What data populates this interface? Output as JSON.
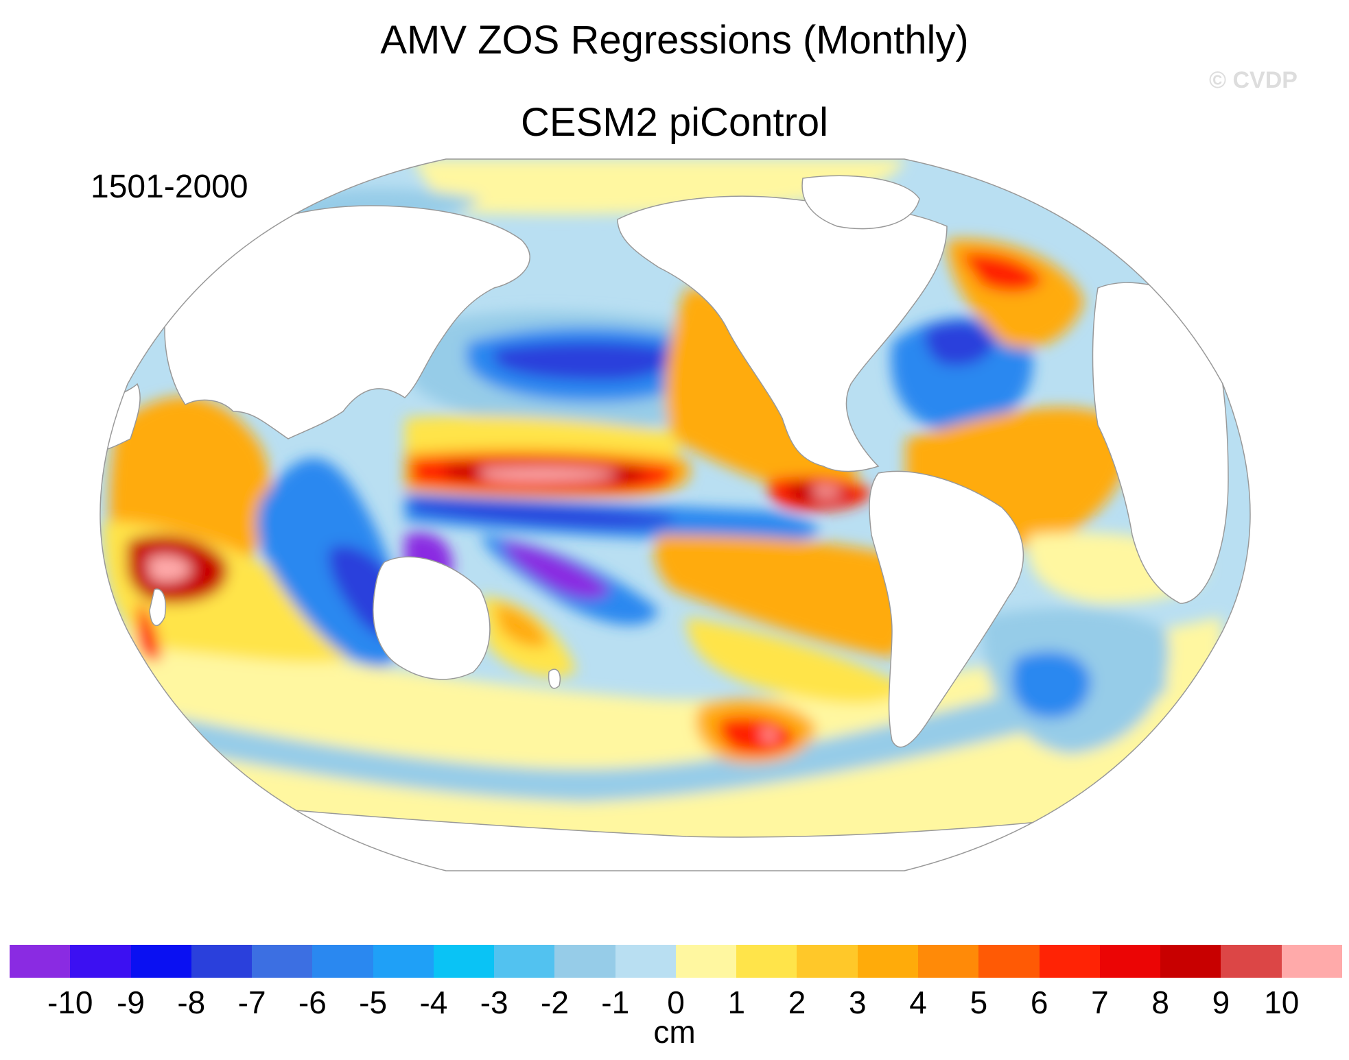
{
  "title": "AMV ZOS Regressions (Monthly)",
  "subtitle": "CESM2 piControl",
  "period": "1501-2000",
  "credit": "© CVDP",
  "units": "cm",
  "colorbar": {
    "colors": [
      "#8a2be2",
      "#3c10f2",
      "#0a10f2",
      "#2a40dc",
      "#3c6fe2",
      "#2a88f0",
      "#1fa0f7",
      "#0ac3f5",
      "#52c2f0",
      "#96cce8",
      "#b9dff2",
      "#fff7a0",
      "#ffe44a",
      "#ffc829",
      "#ffab0a",
      "#ff8a08",
      "#ff5a05",
      "#ff2305",
      "#eb0505",
      "#c80000",
      "#dc4646",
      "#ffaaaa"
    ],
    "labels": [
      "-10",
      "-9",
      "-8",
      "-7",
      "-6",
      "-5",
      "-4",
      "-3",
      "-2",
      "-1",
      "0",
      "1",
      "2",
      "3",
      "4",
      "5",
      "6",
      "7",
      "8",
      "9",
      "10"
    ]
  },
  "map": {
    "projection": "Robinson (Pacific-centered)",
    "fill_colors": {
      "land": "#ffffff",
      "ocean_neutral": "#b9dff2",
      "light_blue": "#96cce8",
      "mid_blue": "#2a88f0",
      "deep_blue": "#2a40dc",
      "violet": "#8a2be2",
      "light_yellow": "#fff7a0",
      "yellow": "#ffe44a",
      "orange": "#ffab0a",
      "red": "#ff2305",
      "dark_red": "#c80000",
      "pink": "#ffaaaa",
      "outline": "#999999"
    }
  }
}
